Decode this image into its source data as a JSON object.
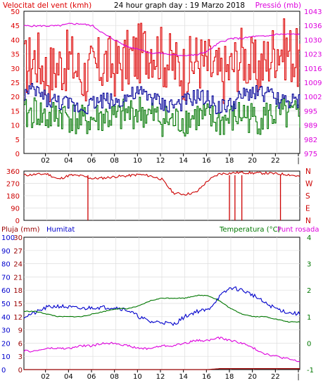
{
  "title": "24 hour graph day : 19 Marzo 2018",
  "wind_panel": {
    "left_label": "Velocitat del vent (kmh)",
    "right_label": "Pressió (mb)"
  },
  "dir_panel": {
    "compass": [
      "N",
      "W",
      "S",
      "E",
      "N"
    ]
  },
  "bottom_panel": {
    "rain_label": "Pluja (mm)",
    "hum_label": "Humitat",
    "temp_label": "Temperatura (°C)",
    "dew_label": "Punt rosada"
  },
  "colors": {
    "wind_gust": "#dd0000",
    "wind_avg": "#007700",
    "wind_dir": "#000099",
    "pressure": "#dd00dd",
    "direction": "#cc0000",
    "humidity": "#0000cc",
    "temperature": "#007700",
    "dew_point": "#dd00dd",
    "rain": "#990000"
  },
  "chart_data": [
    {
      "type": "line",
      "title": "24 hour graph day : 19 Marzo 2018",
      "ylabel": "Velocitat del vent (kmh)",
      "ylim": [
        0,
        50
      ],
      "yticks": [
        "0",
        "5",
        "10",
        "15",
        "20",
        "25",
        "30",
        "35",
        "40",
        "45",
        "50"
      ],
      "y2label": "Pressió (mb)",
      "y2ticks": [
        "975",
        "982",
        "989",
        "995",
        "1002",
        "1009",
        "1016",
        "1023",
        "1030",
        "1036",
        "1043"
      ],
      "x": [
        0,
        1,
        2,
        3,
        4,
        5,
        6,
        7,
        8,
        9,
        10,
        11,
        12,
        13,
        14,
        15,
        16,
        17,
        18,
        19,
        20,
        21,
        22,
        23,
        24
      ],
      "xticks": [
        "02",
        "04",
        "06",
        "08",
        "10",
        "12",
        "14",
        "16",
        "18",
        "20",
        "22",
        "|"
      ],
      "series": [
        {
          "role": "gust",
          "values": [
            30,
            34,
            28,
            31,
            33,
            27,
            29,
            32,
            30,
            33,
            35,
            38,
            34,
            31,
            29,
            33,
            31,
            27,
            30,
            35,
            29,
            32,
            38,
            36,
            32
          ]
        },
        {
          "role": "average",
          "values": [
            13,
            15,
            12,
            14,
            13,
            11,
            12,
            13,
            12,
            14,
            15,
            13,
            12,
            11,
            12,
            13,
            12,
            11,
            12,
            14,
            12,
            13,
            14,
            13,
            13
          ]
        },
        {
          "role": "blue",
          "values": [
            21,
            22,
            19,
            18,
            17,
            16,
            18,
            19,
            18,
            20,
            21,
            20,
            17,
            17,
            18,
            20,
            19,
            16,
            17,
            20,
            22,
            21,
            19,
            18,
            18
          ]
        },
        {
          "role": "pressure",
          "values": [
            1036,
            1036,
            1036,
            1036,
            1037,
            1037,
            1036,
            1032,
            1029,
            1026,
            1025,
            1023,
            1023,
            1022,
            1022,
            1022,
            1024,
            1028,
            1030,
            1030,
            1031,
            1031,
            1032,
            1032,
            1032
          ]
        }
      ]
    },
    {
      "type": "line",
      "ylabel": "Direction",
      "ylim": [
        0,
        360
      ],
      "yticks": [
        "0",
        "90",
        "180",
        "270",
        "360"
      ],
      "compass": [
        "N",
        "E",
        "S",
        "W",
        "N"
      ],
      "x": [
        0,
        1,
        2,
        3,
        4,
        5,
        6,
        7,
        8,
        9,
        10,
        11,
        12,
        13,
        14,
        15,
        16,
        17,
        18,
        19,
        20,
        21,
        22,
        23,
        24
      ],
      "values": [
        330,
        335,
        340,
        300,
        330,
        325,
        305,
        310,
        320,
        325,
        335,
        325,
        300,
        200,
        190,
        205,
        290,
        340,
        345,
        350,
        345,
        345,
        340,
        335,
        320
      ]
    },
    {
      "type": "line",
      "y_left_ticks": [
        "0",
        "10",
        "20",
        "30",
        "40",
        "50",
        "60",
        "70",
        "80",
        "90",
        "100"
      ],
      "y_rain_ticks": [
        "0",
        "3",
        "6",
        "9",
        "12",
        "15",
        "18",
        "21",
        "24",
        "27",
        "30"
      ],
      "y_right_ticks": [
        "-1",
        "0",
        "1",
        "2",
        "3",
        "4"
      ],
      "x": [
        0,
        1,
        2,
        3,
        4,
        5,
        6,
        7,
        8,
        9,
        10,
        11,
        12,
        13,
        14,
        15,
        16,
        17,
        18,
        19,
        20,
        21,
        22,
        23,
        24
      ],
      "xticks": [
        "02",
        "04",
        "06",
        "08",
        "10",
        "12",
        "14",
        "16",
        "18",
        "20",
        "22",
        "|"
      ],
      "series": [
        {
          "name": "Humitat",
          "values": [
            40,
            43,
            47,
            48,
            47,
            46,
            47,
            47,
            47,
            45,
            40,
            36,
            36,
            34,
            40,
            44,
            45,
            55,
            62,
            60,
            56,
            50,
            46,
            43,
            42
          ]
        },
        {
          "name": "Temperatura (°C)",
          "values": [
            1.2,
            1.2,
            1.1,
            1.0,
            1.0,
            1.0,
            1.1,
            1.2,
            1.3,
            1.3,
            1.4,
            1.6,
            1.7,
            1.7,
            1.7,
            1.8,
            1.8,
            1.6,
            1.3,
            1.1,
            1.0,
            1.0,
            0.9,
            0.8,
            0.8
          ]
        },
        {
          "name": "Punt rosada",
          "values": [
            -0.3,
            -0.3,
            -0.2,
            -0.2,
            -0.2,
            -0.1,
            -0.1,
            0.0,
            0.0,
            -0.1,
            -0.2,
            -0.2,
            -0.1,
            -0.1,
            0.0,
            0.1,
            0.1,
            0.2,
            0.1,
            0.0,
            -0.2,
            -0.4,
            -0.5,
            -0.6,
            -0.7
          ]
        },
        {
          "name": "Pluja (mm)",
          "values": [
            0,
            0,
            0,
            0,
            0,
            0,
            0,
            0,
            0,
            0,
            0,
            0,
            0,
            0,
            0,
            0,
            0,
            0.2,
            0.2,
            0.2,
            0.2,
            0.2,
            0.2,
            0.2,
            0.2
          ]
        }
      ]
    }
  ]
}
